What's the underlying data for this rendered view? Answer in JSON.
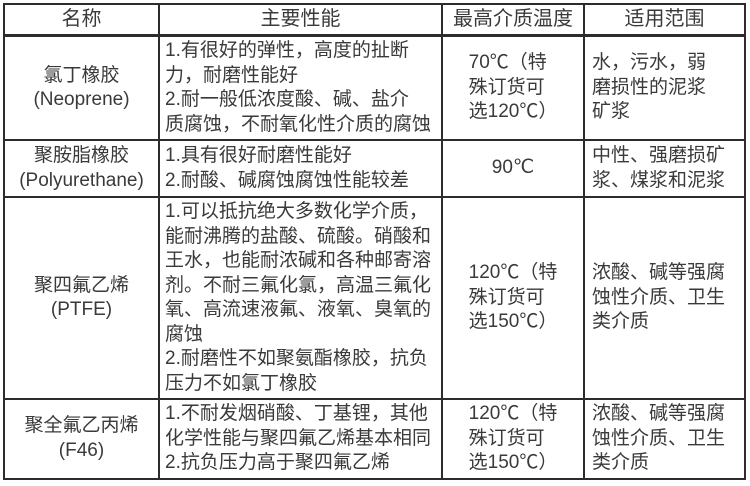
{
  "table": {
    "headers": {
      "name": "名称",
      "performance": "主要性能",
      "max_temp": "最高介质温度",
      "range": "适用范围"
    },
    "rows": [
      {
        "name": "氯丁橡胶\n(Neoprene)",
        "performance": "1.有很好的弹性，高度的扯断\n力，耐磨性能好\n2.耐一般低浓度酸、碱、盐介\n质腐蚀，不耐氧化性介质的腐蚀",
        "temperature": "70℃（特\n殊订货可\n选120℃）",
        "range": "水，污水，弱\n磨损性的泥浆\n矿浆"
      },
      {
        "name": "聚胺脂橡胶\n(Polyurethane)",
        "performance": "1.具有很好耐磨性能好\n2.耐酸、碱腐蚀腐蚀性能较差",
        "temperature": "90℃",
        "range": "中性、强磨损矿\n浆、煤浆和泥浆"
      },
      {
        "name": "聚四氟乙烯\n(PTFE)",
        "performance": "1.可以抵抗绝大多数化学介质，\n能耐沸腾的盐酸、硫酸。硝酸和\n王水，也能耐浓碱和各种邮寄溶\n剂。不耐三氟化氯，高温三氟化\n氧、高流速液氟、液氧、臭氧的\n腐蚀\n2.耐磨性不如聚氨酯橡胶，抗负\n压力不如氯丁橡胶",
        "temperature": "120℃（特\n殊订货可\n选150℃）",
        "range": "浓酸、碱等强腐\n蚀性介质、卫生\n类介质"
      },
      {
        "name": "聚全氟乙丙烯\n(F46)",
        "performance": "1.不耐发烟硝酸、丁基锂，其他\n化学性能与聚四氟乙烯基本相同\n2.抗负压力高于聚四氟乙烯",
        "temperature": "120℃（特\n殊订货可\n选150℃）",
        "range": "浓酸、碱等强腐\n蚀性介质、卫生\n类介质"
      }
    ]
  }
}
